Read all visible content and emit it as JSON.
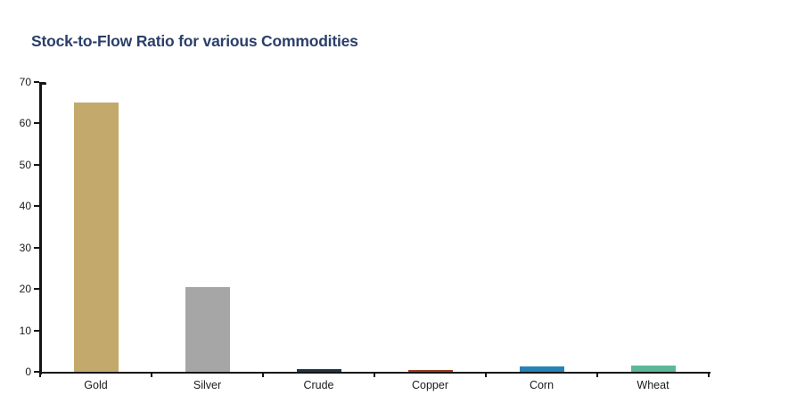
{
  "chart_data": {
    "type": "bar",
    "title": "Stock-to-Flow Ratio for various Commodities",
    "categories": [
      "Gold",
      "Silver",
      "Crude",
      "Copper",
      "Corn",
      "Wheat"
    ],
    "values": [
      65,
      20.4,
      0.6,
      0.35,
      1.2,
      1.6
    ],
    "bar_colors": [
      "#c3a96b",
      "#a6a6a6",
      "#243447",
      "#9e3a22",
      "#2583b5",
      "#5eb897"
    ],
    "xlabel": "",
    "ylabel": "",
    "ylim": [
      0,
      70
    ],
    "yticks": [
      0,
      10,
      20,
      30,
      40,
      50,
      60,
      70
    ],
    "grid": false,
    "legend_position": "none"
  },
  "colors": {
    "background": "#ffffff",
    "title_text": "#2b3f6a",
    "axis": "#151515",
    "tick_label": "#1a1a1a"
  }
}
